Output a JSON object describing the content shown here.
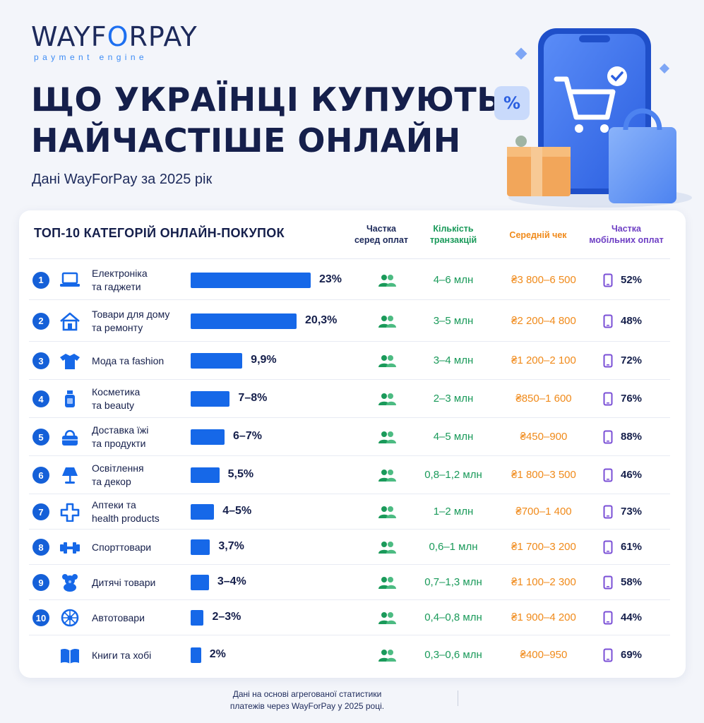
{
  "logo": {
    "pre": "WAYF",
    "o": "O",
    "post": "RPAY",
    "sub": "payment engine"
  },
  "title": {
    "line1": "ЩО УКРАЇНЦІ КУПУЮТЬ",
    "line2": "НАЙЧАСТІШЕ ОНЛАЙН"
  },
  "subtitle": "Дані WayForPay за 2025 рік",
  "table": {
    "title": "ТОП-10 КАТЕГОРІЙ ОНЛАЙН-ПОКУПОК",
    "headers": {
      "share": [
        "Частка",
        "серед оплат"
      ],
      "transactions": [
        "Кількість",
        "транзакцій"
      ],
      "avg_check": "Середній чек",
      "mobile": [
        "Частка",
        "мобільних оплат"
      ]
    }
  },
  "colors": {
    "bar": "#1668e8",
    "rank": "#1560d8",
    "transactions": "#1a9a5a",
    "avg_check": "#f08a1a",
    "mobile_icon": "#7a4fd6"
  },
  "chart_data": {
    "type": "bar",
    "orientation": "horizontal",
    "title": "ТОП-10 КАТЕГОРІЙ ОНЛАЙН-ПОКУПОК",
    "xlim": [
      0,
      23
    ],
    "rows": [
      {
        "rank": "1",
        "icon": "laptop-icon",
        "name": [
          "Електроніка",
          "та гаджети"
        ],
        "value": 23,
        "label": "23%",
        "transactions": "4–6 млн",
        "avg_check": "₴3 800–6 500",
        "mobile": "52%"
      },
      {
        "rank": "2",
        "icon": "house-icon",
        "name": [
          "Товари для дому",
          "та ремонту"
        ],
        "value": 20.3,
        "label": "20,3%",
        "transactions": "3–5 млн",
        "avg_check": "₴2 200–4 800",
        "mobile": "48%"
      },
      {
        "rank": "3",
        "icon": "tshirt-icon",
        "name": [
          "Мода та fashion"
        ],
        "value": 9.9,
        "label": "9,9%",
        "transactions": "3–4 млн",
        "avg_check": "₴1 200–2 100",
        "mobile": "72%"
      },
      {
        "rank": "4",
        "icon": "cosmetics-bottle-icon",
        "name": [
          "Косметика",
          "та beauty"
        ],
        "value": 7.5,
        "label": "7–8%",
        "transactions": "2–3 млн",
        "avg_check": "₴850–1 600",
        "mobile": "76%"
      },
      {
        "rank": "5",
        "icon": "food-bag-icon",
        "name": [
          "Доставка їжі",
          "та продукти"
        ],
        "value": 6.5,
        "label": "6–7%",
        "transactions": "4–5 млн",
        "avg_check": "₴450–900",
        "mobile": "88%"
      },
      {
        "rank": "6",
        "icon": "lamp-icon",
        "name": [
          "Освітлення",
          "та декор"
        ],
        "value": 5.5,
        "label": "5,5%",
        "transactions": "0,8–1,2 млн",
        "avg_check": "₴1 800–3 500",
        "mobile": "46%"
      },
      {
        "rank": "7",
        "icon": "medical-cross-icon",
        "name": [
          "Аптеки та",
          "health products"
        ],
        "value": 4.5,
        "label": "4–5%",
        "transactions": "1–2 млн",
        "avg_check": "₴700–1 400",
        "mobile": "73%"
      },
      {
        "rank": "8",
        "icon": "dumbbell-icon",
        "name": [
          "Спорттовари"
        ],
        "value": 3.7,
        "label": "3,7%",
        "transactions": "0,6–1 млн",
        "avg_check": "₴1 700–3 200",
        "mobile": "61%"
      },
      {
        "rank": "9",
        "icon": "teddy-bear-icon",
        "name": [
          "Дитячі товари"
        ],
        "value": 3.5,
        "label": "3–4%",
        "transactions": "0,7–1,3 млн",
        "avg_check": "₴1 100–2 300",
        "mobile": "58%"
      },
      {
        "rank": "10",
        "icon": "wheel-icon",
        "name": [
          "Автотовари"
        ],
        "value": 2.5,
        "label": "2–3%",
        "transactions": "0,4–0,8 млн",
        "avg_check": "₴1 900–4 200",
        "mobile": "44%"
      },
      {
        "rank": "",
        "icon": "book-icon",
        "name": [
          "Книги та хобі"
        ],
        "value": 2,
        "label": "2%",
        "transactions": "0,3–0,6 млн",
        "avg_check": "₴400–950",
        "mobile": "69%"
      }
    ]
  },
  "footnote": [
    "Дані на основі агрегованої статистики",
    "платежів через WayForPay у 2025 році."
  ]
}
